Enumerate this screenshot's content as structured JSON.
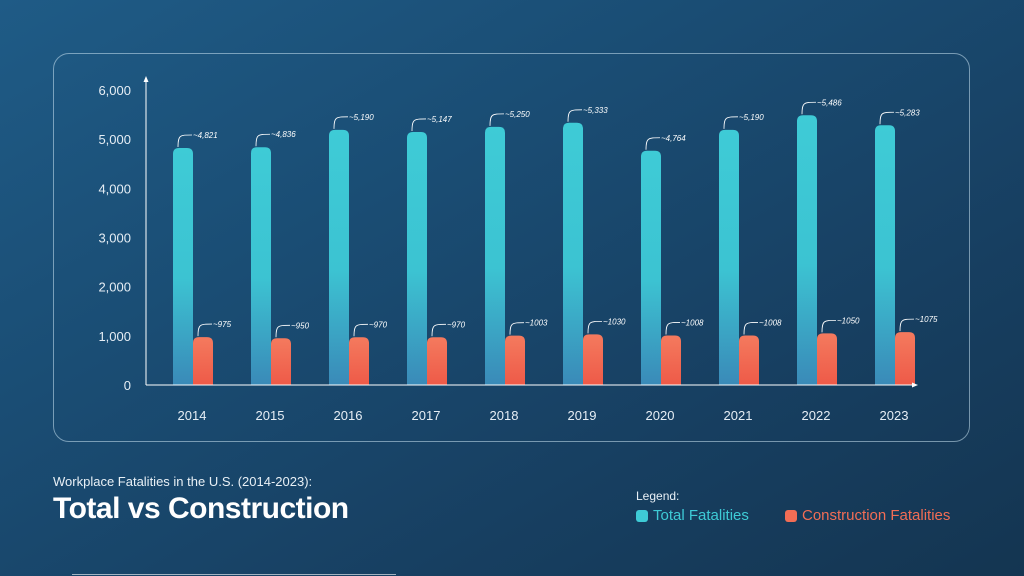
{
  "chart_data": {
    "type": "bar",
    "title": "Total vs Construction",
    "subtitle": "Workplace Fatalities in the U.S. (2014-2023):",
    "xlabel": "",
    "ylabel": "",
    "ylim": [
      0,
      6000
    ],
    "yticks": [
      0,
      1000,
      2000,
      3000,
      4000,
      5000,
      6000
    ],
    "ytick_labels": [
      "0",
      "1,000",
      "2,000",
      "3,000",
      "4,000",
      "5,000",
      "6,000"
    ],
    "categories": [
      "2014",
      "2015",
      "2016",
      "2017",
      "2018",
      "2019",
      "2020",
      "2021",
      "2022",
      "2023"
    ],
    "series": [
      {
        "name": "Total Fatalities",
        "color": "#3ecbd6",
        "values": [
          4821,
          4836,
          5190,
          5147,
          5250,
          5333,
          4764,
          5190,
          5486,
          5283
        ],
        "labels": [
          "~4,821",
          "~4,836",
          "~5,190",
          "~5,147",
          "~5,250",
          "~5,333",
          "~4,764",
          "~5,190",
          "~5,486",
          "~5,283"
        ]
      },
      {
        "name": "Construction Fatalities",
        "color": "#f26d55",
        "values": [
          975,
          950,
          970,
          970,
          1003,
          1030,
          1008,
          1008,
          1050,
          1075
        ],
        "labels": [
          "~975",
          "~950",
          "~970",
          "~970",
          "~1003",
          "~1030",
          "~1008",
          "~1008",
          "~1050",
          "~1075"
        ]
      }
    ],
    "grid": false
  },
  "legend": {
    "title": "Legend:",
    "items": [
      {
        "label": "Total Fatalities",
        "color": "#3ecbd6"
      },
      {
        "label": "Construction Fatalities",
        "color": "#f26d55"
      }
    ]
  }
}
